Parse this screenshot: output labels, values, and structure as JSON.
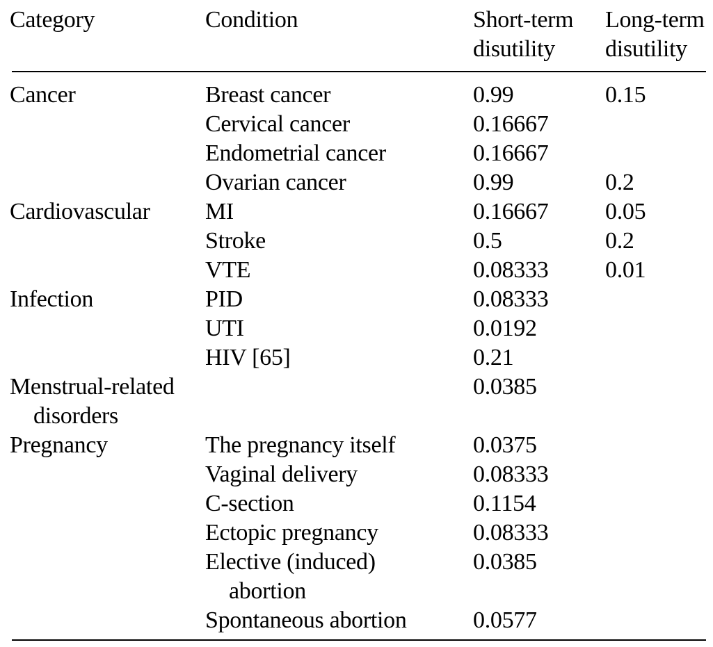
{
  "table": {
    "header": {
      "category": "Category",
      "condition": "Condition",
      "short": "Short-term\ndisutility",
      "long": "Long-term\ndisutility"
    },
    "rows": [
      {
        "category": "Cancer",
        "condition": "Breast cancer",
        "short": "0.99",
        "long": "0.15"
      },
      {
        "category": "",
        "condition": "Cervical cancer",
        "short": "0.16667",
        "long": ""
      },
      {
        "category": "",
        "condition": "Endometrial cancer",
        "short": "0.16667",
        "long": ""
      },
      {
        "category": "",
        "condition": "Ovarian cancer",
        "short": "0.99",
        "long": "0.2"
      },
      {
        "category": "Cardiovascular",
        "condition": "MI",
        "short": "0.16667",
        "long": "0.05"
      },
      {
        "category": "",
        "condition": "Stroke",
        "short": "0.5",
        "long": "0.2"
      },
      {
        "category": "",
        "condition": "VTE",
        "short": "0.08333",
        "long": "0.01"
      },
      {
        "category": "Infection",
        "condition": "PID",
        "short": "0.08333",
        "long": ""
      },
      {
        "category": "",
        "condition": "UTI",
        "short": "0.0192",
        "long": ""
      },
      {
        "category": "",
        "condition": "HIV [65]",
        "short": "0.21",
        "long": ""
      },
      {
        "category": "Menstrual-related\ndisorders",
        "condition": "",
        "short": "0.0385",
        "long": ""
      },
      {
        "category": "Pregnancy",
        "condition": "The pregnancy itself",
        "short": "0.0375",
        "long": ""
      },
      {
        "category": "",
        "condition": "Vaginal delivery",
        "short": "0.08333",
        "long": ""
      },
      {
        "category": "",
        "condition": "C-section",
        "short": "0.1154",
        "long": ""
      },
      {
        "category": "",
        "condition": "Ectopic pregnancy",
        "short": "0.08333",
        "long": ""
      },
      {
        "category": "",
        "condition": "Elective (induced)\nabortion",
        "short": "0.0385",
        "long": ""
      },
      {
        "category": "",
        "condition": "Spontaneous abortion",
        "short": "0.0577",
        "long": ""
      }
    ]
  },
  "colors": {
    "background": "#ffffff",
    "text": "#000000",
    "rule": "#000000"
  }
}
